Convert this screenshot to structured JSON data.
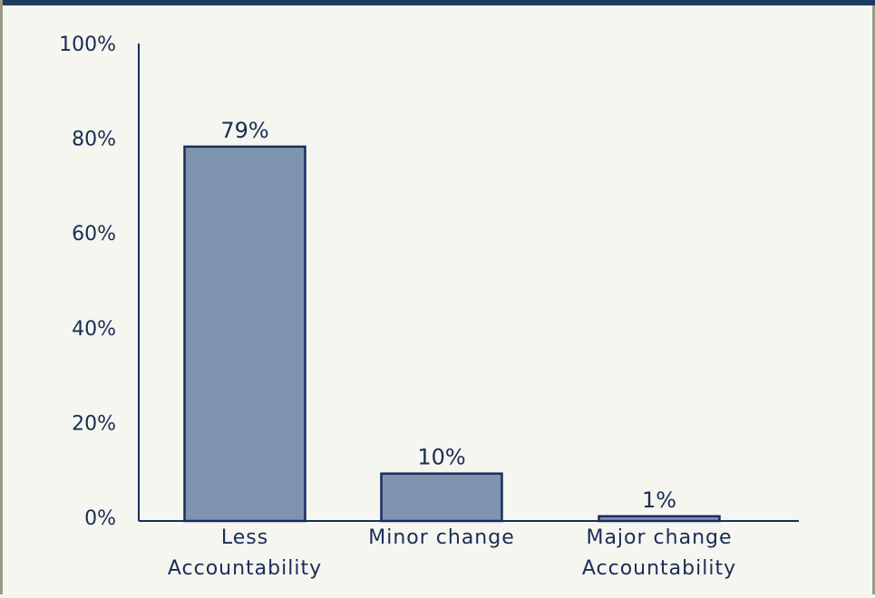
{
  "chart_data": {
    "type": "bar",
    "categories": [
      [
        "Less",
        "Accountability"
      ],
      [
        "Minor change"
      ],
      [
        "Major change",
        "Accountability"
      ]
    ],
    "values": [
      79,
      10,
      1
    ],
    "data_labels": [
      "79%",
      "10%",
      "1%"
    ],
    "yticks": [
      "0%",
      "20%",
      "40%",
      "60%",
      "80%",
      "100%"
    ],
    "ylim": [
      0,
      100
    ],
    "title": "",
    "xlabel": "",
    "ylabel": "",
    "grid": false,
    "colors": {
      "bar_fill": "#7f94ae",
      "bar_stroke": "#1a2c5e",
      "axis": "#1a2c5e",
      "text": "#1a2c55"
    }
  }
}
